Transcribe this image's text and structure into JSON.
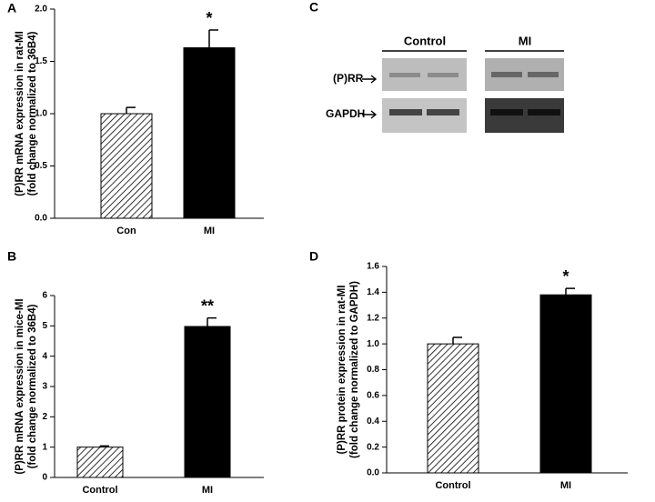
{
  "chart_data": [
    {
      "type": "bar",
      "panel": "A",
      "ylabel": [
        "(P)RR mRNA expression in rat-MI",
        "(fold change normalized to 36B4)"
      ],
      "categories": [
        "Con",
        "MI"
      ],
      "values": [
        1.0,
        1.63
      ],
      "errors": [
        0.06,
        0.17
      ],
      "colors": [
        "#ffffff",
        "#000000"
      ],
      "hatch": [
        true,
        false
      ],
      "annotation": "*",
      "ylim": [
        0,
        2
      ],
      "yticks": [
        {
          "value": 0,
          "label": "0.0"
        },
        0.5,
        {
          "value": 1,
          "label": "1.0"
        },
        1.5,
        {
          "value": 2,
          "label": "2.0"
        }
      ]
    },
    {
      "type": "bar",
      "panel": "B",
      "ylabel": [
        "(P)RR mRNA expression in mice-MI",
        "(fold change normalized to 36B4)"
      ],
      "categories": [
        "Control",
        "MI"
      ],
      "values": [
        1.0,
        4.98
      ],
      "errors": [
        0.04,
        0.28
      ],
      "colors": [
        "#ffffff",
        "#000000"
      ],
      "hatch": [
        true,
        false
      ],
      "annotation": "**",
      "ylim": [
        0,
        6
      ],
      "yticks": [
        0,
        1,
        2,
        3,
        4,
        5,
        6
      ]
    },
    {
      "type": "bar",
      "panel": "D",
      "ylabel": [
        "(P)RR protein expression in rat-MI",
        "(fold change normalized to GAPDH)"
      ],
      "categories": [
        "Control",
        "MI"
      ],
      "values": [
        1.0,
        1.38
      ],
      "errors": [
        0.05,
        0.05
      ],
      "colors": [
        "#ffffff",
        "#000000"
      ],
      "hatch": [
        true,
        false
      ],
      "annotation": "*",
      "ylim": [
        0,
        1.6
      ],
      "yticks": [
        {
          "value": 0,
          "label": "0.0"
        },
        0.2,
        0.4,
        0.6,
        0.8,
        {
          "value": 1,
          "label": "1.0"
        },
        1.2,
        1.4,
        1.6
      ]
    }
  ],
  "blot": {
    "panel": "C",
    "groups": [
      "Control",
      "MI"
    ],
    "rows": [
      "(P)RR",
      "GAPDH"
    ]
  }
}
